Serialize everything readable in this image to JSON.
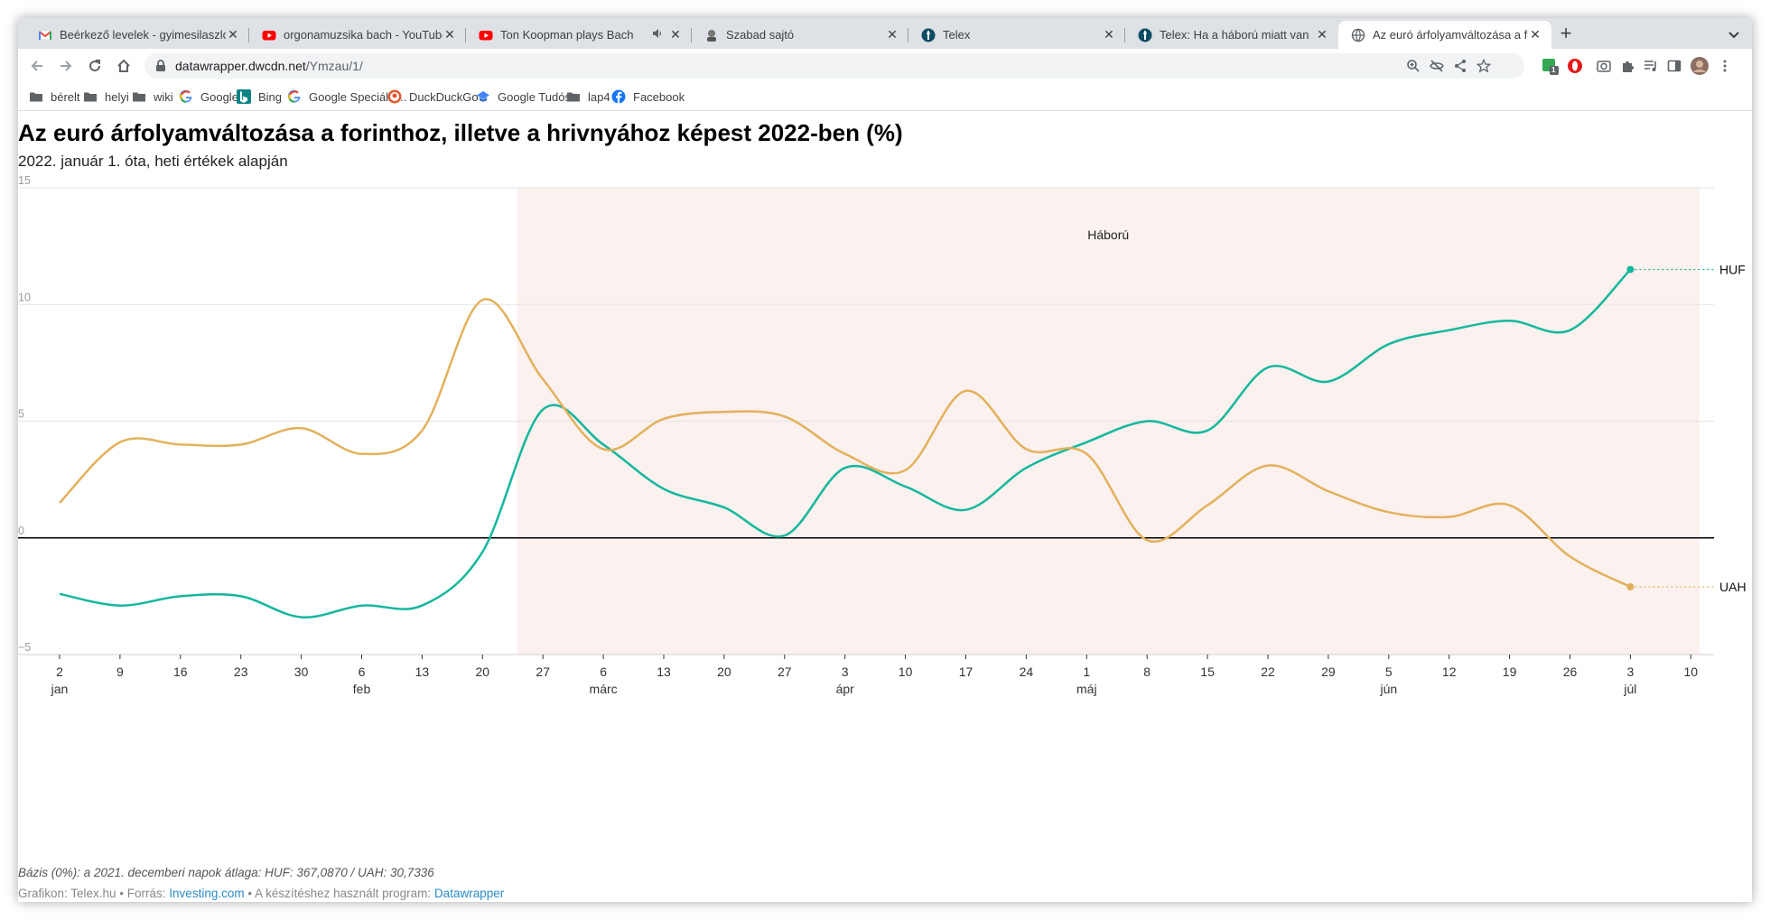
{
  "browser": {
    "tabs": [
      {
        "title": "Beérkező levelek - gyimesilaszlo",
        "icon": "gmail-icon",
        "active": false
      },
      {
        "title": "orgonamuzsika bach - YouTube",
        "icon": "youtube-icon",
        "active": false
      },
      {
        "title": "Ton Koopman plays Bach",
        "icon": "youtube-icon",
        "active": false,
        "audio": true
      },
      {
        "title": "Szabad sajtó",
        "icon": "site-icon",
        "active": false
      },
      {
        "title": "Telex",
        "icon": "telex-icon",
        "active": false
      },
      {
        "title": "Telex: Ha a háború miatt van",
        "icon": "telex-icon",
        "active": false
      },
      {
        "title": "Az euró árfolyamváltozása a forinthoz",
        "icon": "globe-icon",
        "active": true
      }
    ],
    "url_host": "datawrapper.dwcdn.net",
    "url_path": "/Ymzau/1/",
    "extension_badge": "1",
    "bookmarks": [
      {
        "label": "bérelt",
        "icon": "folder-icon"
      },
      {
        "label": "helyi",
        "icon": "folder-icon"
      },
      {
        "label": "wiki",
        "icon": "folder-icon"
      },
      {
        "label": "Google",
        "icon": "google-icon"
      },
      {
        "label": "Bing",
        "icon": "bing-icon"
      },
      {
        "label": "Google Speciális...",
        "icon": "google-icon"
      },
      {
        "label": "DuckDuckGo",
        "icon": "duckduckgo-icon"
      },
      {
        "label": "Google Tudós",
        "icon": "scholar-icon"
      },
      {
        "label": "lap4",
        "icon": "folder-icon"
      },
      {
        "label": "Facebook",
        "icon": "facebook-icon"
      }
    ]
  },
  "page": {
    "note": "Bázis (0%): a 2021. decemberi napok átlaga: HUF: 367,0870 / UAH: 30,7336",
    "credit_prefix": "Grafikon: Telex.hu • Forrás: ",
    "credit_source": "Investing.com",
    "credit_mid": " • A készítéshez használt program: ",
    "credit_tool": "Datawrapper"
  },
  "chart_data": {
    "type": "line",
    "title": "Az euró árfolyamváltozása a forinthoz, illetve a hrivnyához képest 2022-ben (%)",
    "subtitle": "2022. január 1. óta, heti értékek alapján",
    "ylim": [
      -5,
      15
    ],
    "y_ticks": [
      15,
      10,
      5,
      0,
      -5
    ],
    "y_tick_labels": [
      "15",
      "10",
      "5",
      "0",
      "−5"
    ],
    "x_ticks": [
      "2",
      "9",
      "16",
      "23",
      "30",
      "6",
      "13",
      "20",
      "27",
      "6",
      "13",
      "20",
      "27",
      "3",
      "10",
      "17",
      "24",
      "1",
      "8",
      "15",
      "22",
      "29",
      "5",
      "12",
      "19",
      "26",
      "3",
      "10"
    ],
    "month_labels": [
      {
        "index": 0,
        "label": "jan"
      },
      {
        "index": 5,
        "label": "feb"
      },
      {
        "index": 9,
        "label": "márc"
      },
      {
        "index": 13,
        "label": "ápr"
      },
      {
        "index": 17,
        "label": "máj"
      },
      {
        "index": 22,
        "label": "jún"
      },
      {
        "index": 26,
        "label": "júl"
      }
    ],
    "x": [
      "2022-01-02",
      "2022-01-09",
      "2022-01-16",
      "2022-01-23",
      "2022-01-30",
      "2022-02-06",
      "2022-02-13",
      "2022-02-20",
      "2022-02-27",
      "2022-03-06",
      "2022-03-13",
      "2022-03-20",
      "2022-03-27",
      "2022-04-03",
      "2022-04-10",
      "2022-04-17",
      "2022-04-24",
      "2022-05-01",
      "2022-05-08",
      "2022-05-15",
      "2022-05-22",
      "2022-05-29",
      "2022-06-05",
      "2022-06-12",
      "2022-06-19",
      "2022-06-26",
      "2022-07-03"
    ],
    "series": [
      {
        "name": "HUF",
        "color": "#15b79c",
        "values": [
          -2.4,
          -2.9,
          -2.5,
          -2.5,
          -3.4,
          -2.9,
          -2.9,
          -0.6,
          5.5,
          4.0,
          2.1,
          1.3,
          0.1,
          3.0,
          2.2,
          1.2,
          3.0,
          4.1,
          5.0,
          4.6,
          7.3,
          6.7,
          8.3,
          8.9,
          9.3,
          8.9,
          11.5
        ]
      },
      {
        "name": "UAH",
        "color": "#e3b15c",
        "values": [
          1.5,
          4.1,
          4.0,
          4.0,
          4.7,
          3.6,
          4.6,
          10.2,
          6.8,
          3.8,
          5.1,
          5.4,
          5.2,
          3.6,
          2.9,
          6.3,
          3.8,
          3.6,
          -0.1,
          1.4,
          3.1,
          2.0,
          1.1,
          0.9,
          1.4,
          -0.8,
          -2.1
        ]
      }
    ],
    "annotation_band": {
      "label": "Háború",
      "start": "2022-02-24",
      "end": "2022-07-11",
      "color": "#fbf1ef"
    },
    "grid": true,
    "legend": "direct labels at line ends (right)"
  }
}
